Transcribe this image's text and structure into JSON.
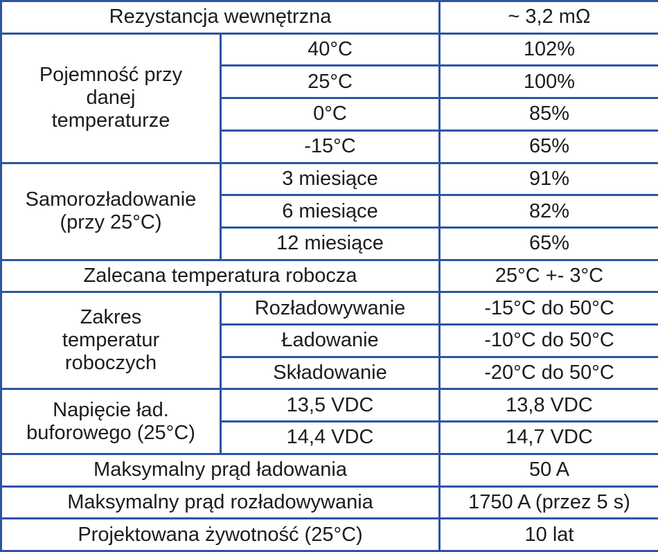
{
  "accent_color": "#2b54a3",
  "rows": {
    "resistance": {
      "label": "Rezystancja wewnętrzna",
      "value": "~ 3,2 mΩ"
    },
    "capacity": {
      "label": "Pojemność przy danej temperaturze",
      "items": [
        {
          "cond": "40°C",
          "value": "102%"
        },
        {
          "cond": "25°C",
          "value": "100%"
        },
        {
          "cond": "0°C",
          "value": "85%"
        },
        {
          "cond": "-15°C",
          "value": "65%"
        }
      ]
    },
    "selfdischarge": {
      "label": "Samorozładowanie (przy 25°C)",
      "items": [
        {
          "cond": "3 miesiące",
          "value": "91%"
        },
        {
          "cond": "6 miesiące",
          "value": "82%"
        },
        {
          "cond": "12 miesiące",
          "value": "65%"
        }
      ]
    },
    "optemp": {
      "label": "Zalecana temperatura robocza",
      "value": "25°C +- 3°C"
    },
    "temprange": {
      "label": "Zakres temperatur roboczych",
      "items": [
        {
          "cond": "Rozładowywanie",
          "value": "-15°C do 50°C"
        },
        {
          "cond": "Ładowanie",
          "value": "-10°C do 50°C"
        },
        {
          "cond": "Składowanie",
          "value": "-20°C do 50°C"
        }
      ]
    },
    "float": {
      "label": "Napięcie ład. buforowego (25°C)",
      "items": [
        {
          "cond": "13,5 VDC",
          "value": "13,8 VDC"
        },
        {
          "cond": "14,4 VDC",
          "value": "14,7 VDC"
        }
      ]
    },
    "maxcharge": {
      "label": "Maksymalny prąd ładowania",
      "value": "50 A"
    },
    "maxdischarge": {
      "label": "Maksymalny prąd rozładowywania",
      "value": "1750 A (przez 5 s)"
    },
    "life": {
      "label": "Projektowana żywotność (25°C)",
      "value": "10 lat"
    }
  }
}
